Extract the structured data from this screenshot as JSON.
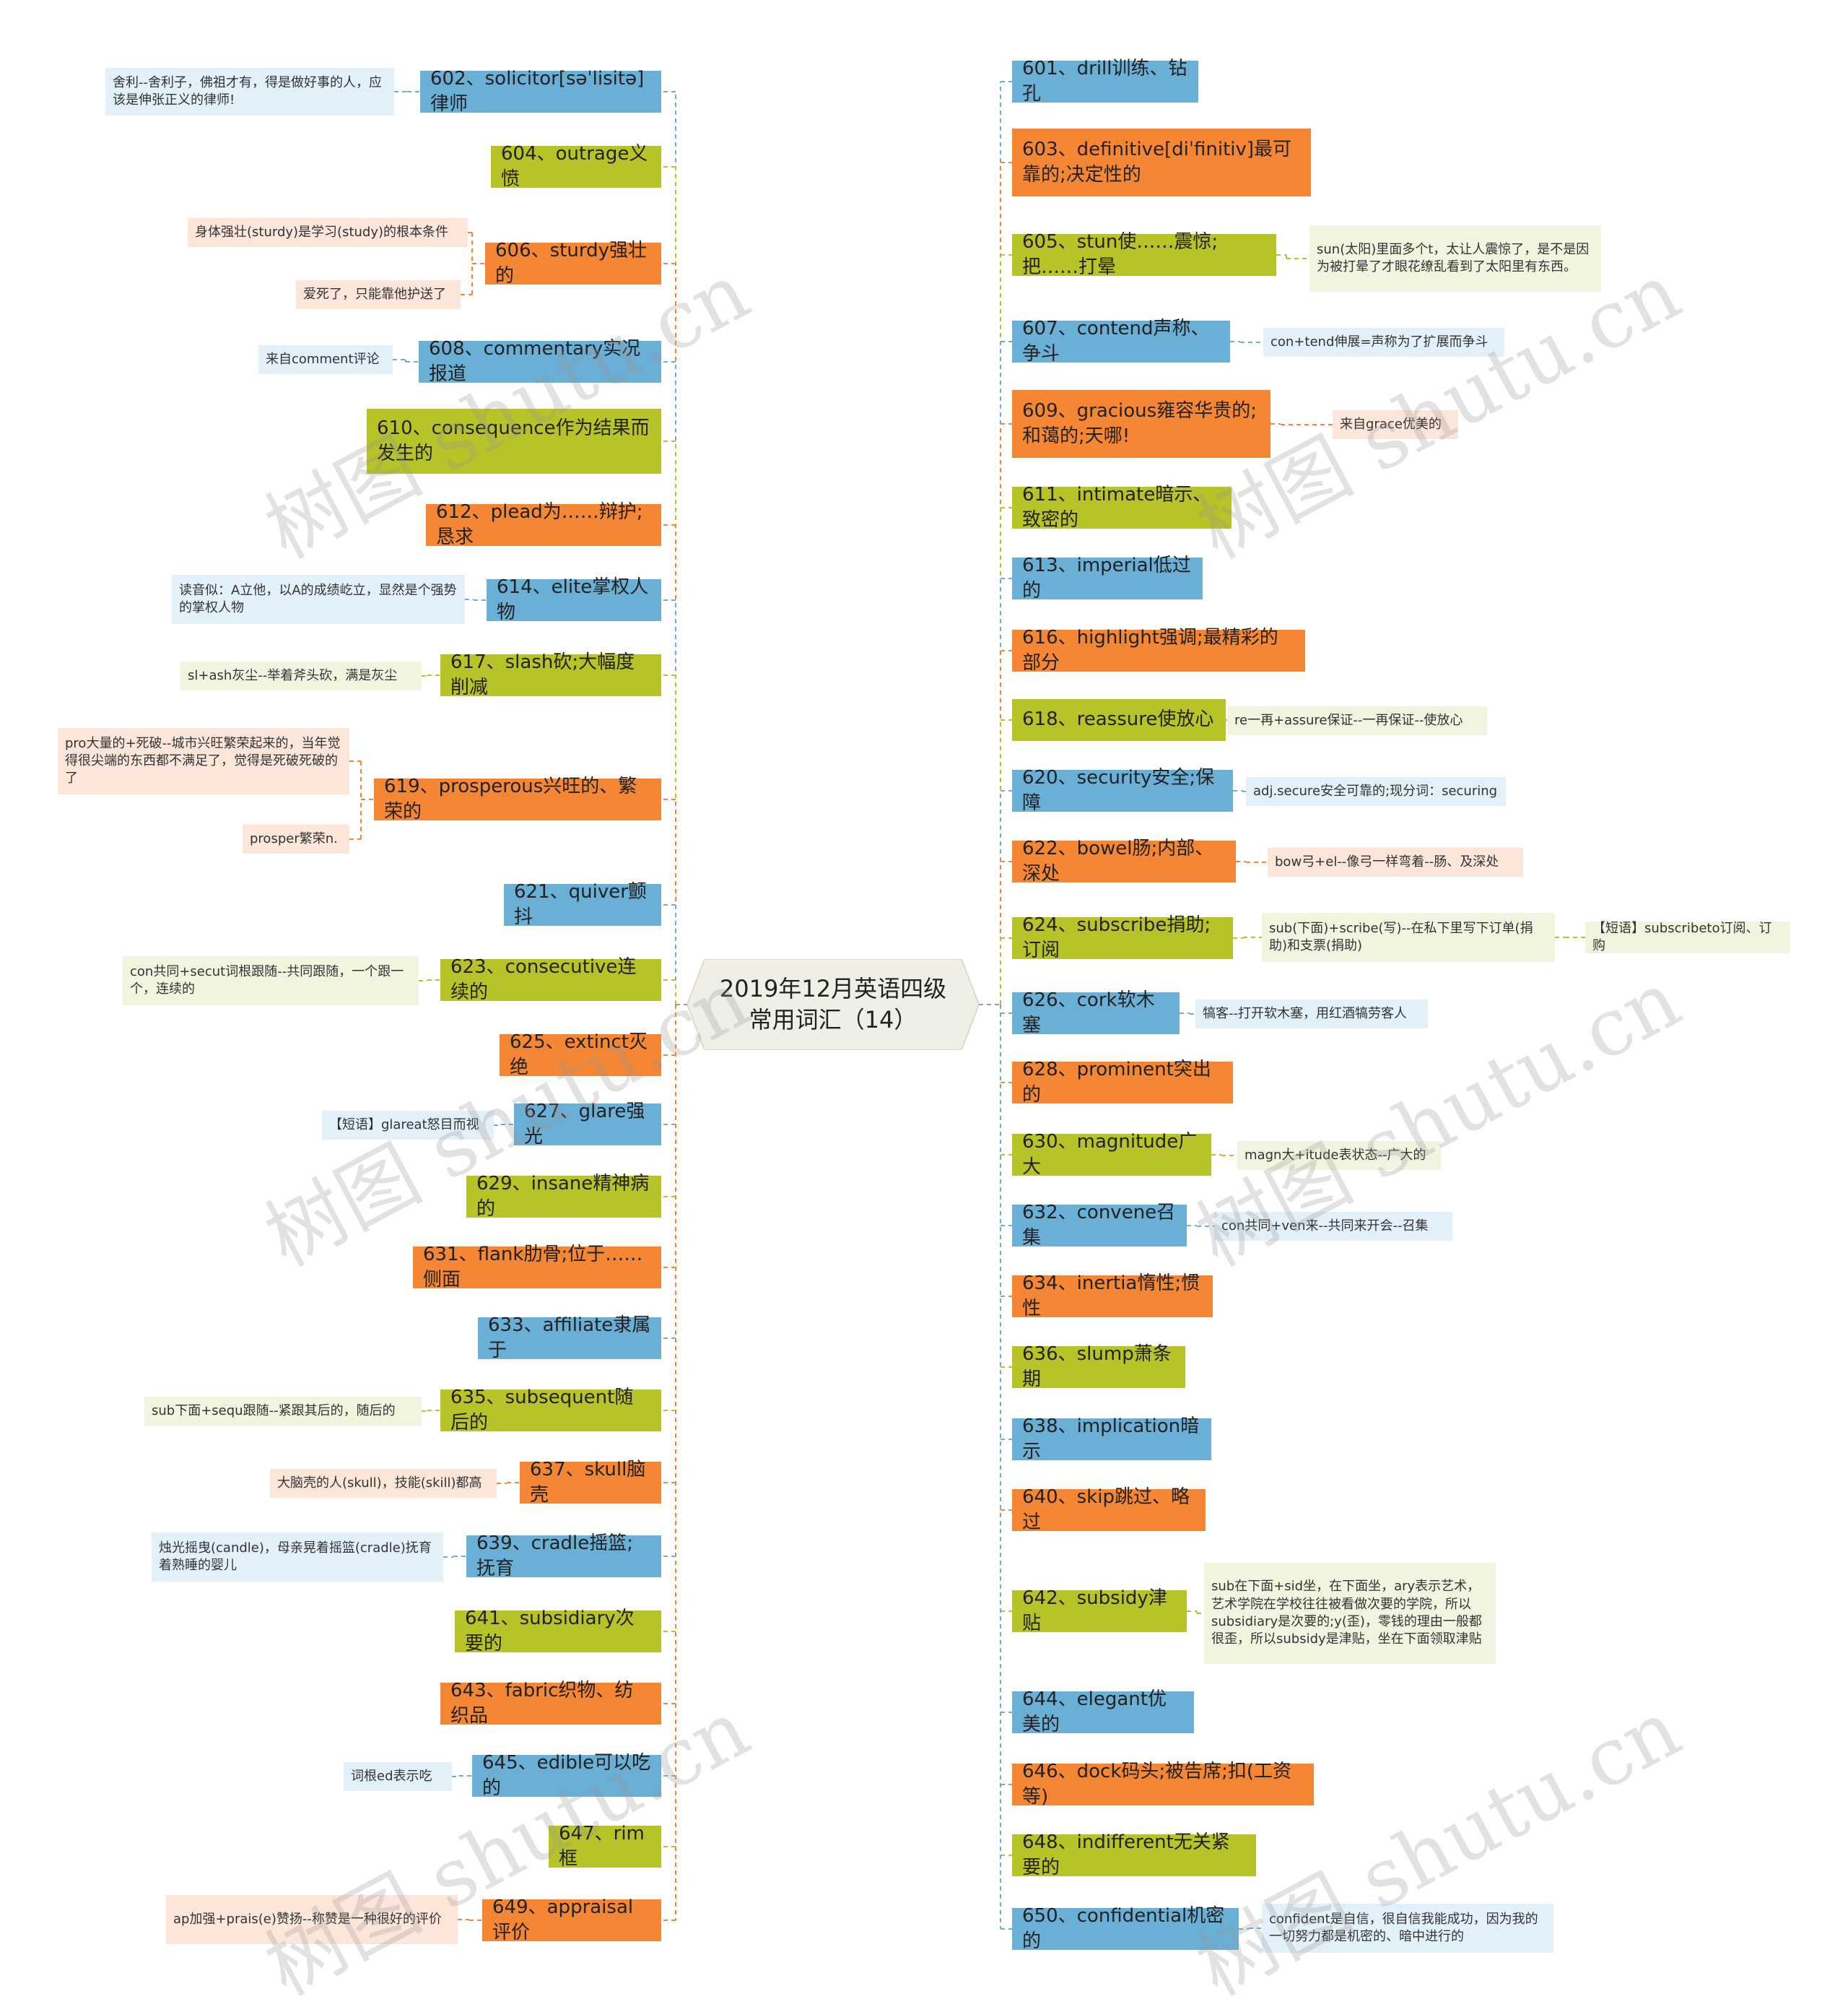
{
  "center_title": "2019年12月英语四级常用词汇（14）",
  "watermark": "树图 shutu.cn",
  "colors": {
    "blue": "#6aafd6",
    "green": "#b7c326",
    "orange": "#f58634",
    "note_blue": "#e2f0f9",
    "note_green": "#f2f4df",
    "note_orange": "#fce6da",
    "center": "#f0efe6"
  },
  "left_branches": [
    {
      "label": "602、solicitor[səˈlisitə]律师",
      "color": "blue",
      "notes": [
        "舍利--舍利子，佛祖才有，得是做好事的人，应该是伸张正义的律师!"
      ]
    },
    {
      "label": "604、outrage义愤",
      "color": "green",
      "notes": []
    },
    {
      "label": "606、sturdy强壮的",
      "color": "orange",
      "notes": [
        "身体强壮(sturdy)是学习(study)的根本条件",
        "爱死了，只能靠他护送了"
      ]
    },
    {
      "label": "608、commentary实况报道",
      "color": "blue",
      "notes": [
        "来自comment评论"
      ]
    },
    {
      "label": "610、consequence作为结果而发生的",
      "color": "green",
      "notes": []
    },
    {
      "label": "612、plead为……辩护;恳求",
      "color": "orange",
      "notes": []
    },
    {
      "label": "614、elite掌权人物",
      "color": "blue",
      "notes": [
        "读音似：A立他，以A的成绩屹立，显然是个强势的掌权人物"
      ]
    },
    {
      "label": "617、slash砍;大幅度削减",
      "color": "green",
      "notes": [
        "sl+ash灰尘--举着斧头砍，满是灰尘"
      ]
    },
    {
      "label": "619、prosperous兴旺的、繁荣的",
      "color": "orange",
      "notes": [
        "pro大量的+死破--城市兴旺繁荣起来的，当年觉得很尖端的东西都不满足了，觉得是死破死破的了",
        "prosper繁荣n."
      ]
    },
    {
      "label": "621、quiver颤抖",
      "color": "blue",
      "notes": []
    },
    {
      "label": "623、consecutive连续的",
      "color": "green",
      "notes": [
        "con共同+secut词根跟随--共同跟随，一个跟一个，连续的"
      ]
    },
    {
      "label": "625、extinct灭绝",
      "color": "orange",
      "notes": []
    },
    {
      "label": "627、glare强光",
      "color": "blue",
      "notes": [
        "【短语】glareat怒目而视"
      ]
    },
    {
      "label": "629、insane精神病的",
      "color": "green",
      "notes": []
    },
    {
      "label": "631、flank肋骨;位于……侧面",
      "color": "orange",
      "notes": []
    },
    {
      "label": "633、affiliate隶属于",
      "color": "blue",
      "notes": []
    },
    {
      "label": "635、subsequent随后的",
      "color": "green",
      "notes": [
        "sub下面+sequ跟随--紧跟其后的，随后的"
      ]
    },
    {
      "label": "637、skull脑壳",
      "color": "orange",
      "notes": [
        "大脑壳的人(skull)，技能(skill)都高"
      ]
    },
    {
      "label": "639、cradle摇篮;抚育",
      "color": "blue",
      "notes": [
        "烛光摇曳(candle)，母亲晃着摇篮(cradle)抚育着熟睡的婴儿"
      ]
    },
    {
      "label": "641、subsidiary次要的",
      "color": "green",
      "notes": []
    },
    {
      "label": "643、fabric织物、纺织品",
      "color": "orange",
      "notes": []
    },
    {
      "label": "645、edible可以吃的",
      "color": "blue",
      "notes": [
        "词根ed表示吃"
      ]
    },
    {
      "label": "647、rim框",
      "color": "green",
      "notes": []
    },
    {
      "label": "649、appraisal评价",
      "color": "orange",
      "notes": [
        "ap加强+prais(e)赞扬--称赞是一种很好的评价"
      ]
    }
  ],
  "right_branches": [
    {
      "label": "601、drill训练、钻孔",
      "color": "blue",
      "notes": []
    },
    {
      "label": "603、definitive[diˈfinitiv]最可靠的;决定性的",
      "color": "orange",
      "notes": []
    },
    {
      "label": "605、stun使……震惊;把……打晕",
      "color": "green",
      "notes": [
        "sun(太阳)里面多个t，太让人震惊了，是不是因为被打晕了才眼花缭乱看到了太阳里有东西。"
      ]
    },
    {
      "label": "607、contend声称、争斗",
      "color": "blue",
      "notes": [
        "con+tend伸展=声称为了扩展而争斗"
      ]
    },
    {
      "label": "609、gracious雍容华贵的;和蔼的;天哪!",
      "color": "orange",
      "notes": [
        "来自grace优美的"
      ]
    },
    {
      "label": "611、intimate暗示、致密的",
      "color": "green",
      "notes": []
    },
    {
      "label": "613、imperial低过的",
      "color": "blue",
      "notes": []
    },
    {
      "label": "616、highlight强调;最精彩的部分",
      "color": "orange",
      "notes": []
    },
    {
      "label": "618、reassure使放心",
      "color": "green",
      "notes": [
        "re一再+assure保证--一再保证--使放心"
      ]
    },
    {
      "label": "620、security安全;保障",
      "color": "blue",
      "notes": [
        "adj.secure安全可靠的;现分词：securing"
      ]
    },
    {
      "label": "622、bowel肠;内部、深处",
      "color": "orange",
      "notes": [
        "bow弓+el--像弓一样弯着--肠、及深处"
      ]
    },
    {
      "label": "624、subscribe捐助;订阅",
      "color": "green",
      "notes": [
        "sub(下面)+scribe(写)--在私下里写下订单(捐助)和支票(捐助)",
        "【短语】subscribeto订阅、订购"
      ]
    },
    {
      "label": "626、cork软木塞",
      "color": "blue",
      "notes": [
        "犒客--打开软木塞，用红酒犒劳客人"
      ]
    },
    {
      "label": "628、prominent突出的",
      "color": "orange",
      "notes": []
    },
    {
      "label": "630、magnitude广大",
      "color": "green",
      "notes": [
        "magn大+itude表状态--广大的"
      ]
    },
    {
      "label": "632、convene召集",
      "color": "blue",
      "notes": [
        "con共同+ven来--共同来开会--召集"
      ]
    },
    {
      "label": "634、inertia惰性;惯性",
      "color": "orange",
      "notes": []
    },
    {
      "label": "636、slump萧条期",
      "color": "green",
      "notes": []
    },
    {
      "label": "638、implication暗示",
      "color": "blue",
      "notes": []
    },
    {
      "label": "640、skip跳过、略过",
      "color": "orange",
      "notes": []
    },
    {
      "label": "642、subsidy津贴",
      "color": "green",
      "notes": [
        "sub在下面+sid坐，在下面坐，ary表示艺术，艺术学院在学校往往被看做次要的学院，所以subsidiary是次要的;y(歪)，零钱的理由一般都很歪，所以subsidy是津贴，坐在下面领取津贴"
      ]
    },
    {
      "label": "644、elegant优美的",
      "color": "blue",
      "notes": []
    },
    {
      "label": "646、dock码头;被告席;扣(工资等)",
      "color": "orange",
      "notes": []
    },
    {
      "label": "648、indifferent无关紧要的",
      "color": "green",
      "notes": []
    },
    {
      "label": "650、confidential机密的",
      "color": "blue",
      "notes": [
        "confident是自信，很自信我能成功，因为我的一切努力都是机密的、暗中进行的"
      ]
    }
  ]
}
